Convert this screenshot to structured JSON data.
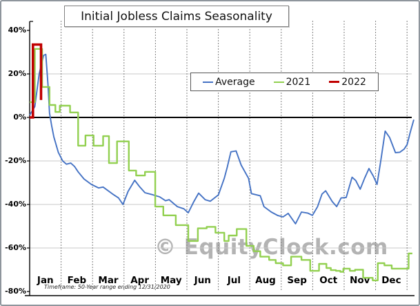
{
  "chart_data": {
    "type": "line",
    "title": "Initial Jobless Claims Seasonality",
    "watermark": "© EquityClock.com",
    "footnote": "Timeframe: 50-Year range ending 12/31/2020",
    "x_axis": {
      "unit": "week-of-year",
      "range_weeks": [
        0,
        52
      ],
      "months": [
        "Jan",
        "Feb",
        "Mar",
        "Apr",
        "May",
        "Jun",
        "Jul",
        "Aug",
        "Sep",
        "Oct",
        "Nov",
        "Dec"
      ]
    },
    "y_axis": {
      "format": "percent",
      "range": [
        -80,
        40
      ],
      "ticks": [
        40,
        20,
        0,
        -20,
        -40,
        -60,
        -80
      ],
      "tick_labels": [
        "40%",
        "20%",
        "0%",
        "-20%",
        "-40%",
        "-60%",
        "-80%"
      ],
      "zero_line_bold": true
    },
    "grid": {
      "horizontal_at_pct": [
        20,
        -20,
        -40,
        -60
      ],
      "vertical": "dashed line at each month boundary"
    },
    "legend": {
      "position": "top-center",
      "items": [
        {
          "label": "Average",
          "color": "#4472C4"
        },
        {
          "label": "2021",
          "color": "#92D050"
        },
        {
          "label": "2022",
          "color": "#C00000"
        }
      ]
    },
    "series": [
      {
        "name": "Average",
        "style": "line",
        "color": "#4472C4",
        "width": 1.9,
        "points_week_pct": [
          [
            0,
            1
          ],
          [
            0.7,
            5
          ],
          [
            1.3,
            20
          ],
          [
            1.9,
            28.5
          ],
          [
            2.2,
            29
          ],
          [
            2.5,
            15
          ],
          [
            2.7,
            2
          ],
          [
            3,
            -4
          ],
          [
            3.3,
            -9
          ],
          [
            3.9,
            -16
          ],
          [
            4.5,
            -20
          ],
          [
            5,
            -21.5
          ],
          [
            5.6,
            -21
          ],
          [
            6.1,
            -22.5
          ],
          [
            6.6,
            -25
          ],
          [
            7.4,
            -28.3
          ],
          [
            8.4,
            -30.8
          ],
          [
            9.4,
            -32.4
          ],
          [
            10,
            -32
          ],
          [
            11.3,
            -35.2
          ],
          [
            12.1,
            -37
          ],
          [
            12.7,
            -40
          ],
          [
            13.4,
            -34
          ],
          [
            14.3,
            -28.9
          ],
          [
            15,
            -32
          ],
          [
            15.7,
            -34.6
          ],
          [
            16.8,
            -35.6
          ],
          [
            17.7,
            -36.5
          ],
          [
            18.5,
            -38.3
          ],
          [
            19,
            -37.8
          ],
          [
            20.1,
            -41
          ],
          [
            21,
            -42
          ],
          [
            21.6,
            -43.8
          ],
          [
            22.3,
            -39
          ],
          [
            23,
            -34.8
          ],
          [
            23.9,
            -37.8
          ],
          [
            24.6,
            -38.5
          ],
          [
            25.7,
            -35.6
          ],
          [
            26.5,
            -28
          ],
          [
            26.9,
            -22.9
          ],
          [
            27.4,
            -15.8
          ],
          [
            28.1,
            -15.4
          ],
          [
            28.8,
            -21.9
          ],
          [
            29.8,
            -28
          ],
          [
            30.2,
            -35
          ],
          [
            31.4,
            -36
          ],
          [
            31.9,
            -41
          ],
          [
            32.9,
            -43.5
          ],
          [
            33.8,
            -45.1
          ],
          [
            34.5,
            -45.7
          ],
          [
            35.2,
            -44.1
          ],
          [
            36.2,
            -48.9
          ],
          [
            37,
            -43.5
          ],
          [
            37.9,
            -44
          ],
          [
            38.5,
            -45
          ],
          [
            39.2,
            -41
          ],
          [
            39.8,
            -35.2
          ],
          [
            40.3,
            -33.7
          ],
          [
            41.2,
            -38.7
          ],
          [
            41.8,
            -41
          ],
          [
            42.4,
            -37
          ],
          [
            43.1,
            -36.8
          ],
          [
            43.9,
            -27.5
          ],
          [
            44.4,
            -29
          ],
          [
            45,
            -33
          ],
          [
            45.6,
            -28
          ],
          [
            46.2,
            -23.5
          ],
          [
            46.8,
            -27
          ],
          [
            47.3,
            -30.8
          ],
          [
            47.8,
            -20
          ],
          [
            48.4,
            -6.3
          ],
          [
            49,
            -9.2
          ],
          [
            49.8,
            -16.2
          ],
          [
            50.4,
            -16
          ],
          [
            51,
            -14.5
          ],
          [
            51.4,
            -12.4
          ],
          [
            51.8,
            -7
          ],
          [
            52.3,
            -1
          ]
        ]
      },
      {
        "name": "2021",
        "style": "step",
        "color": "#92D050",
        "width": 2.4,
        "end_week": 52.1,
        "points_week_pct": [
          [
            0,
            7
          ],
          [
            0.7,
            31.5
          ],
          [
            1.7,
            14
          ],
          [
            2.7,
            5.7
          ],
          [
            3.5,
            2.5
          ],
          [
            4.1,
            5.4
          ],
          [
            5.5,
            2.3
          ],
          [
            6.6,
            -13
          ],
          [
            7.6,
            -8.3
          ],
          [
            8.7,
            -13
          ],
          [
            10,
            -8.6
          ],
          [
            10.8,
            -21
          ],
          [
            11.9,
            -11
          ],
          [
            13.5,
            -24.4
          ],
          [
            14.5,
            -26.7
          ],
          [
            15.7,
            -25
          ],
          [
            17.1,
            -41
          ],
          [
            18.2,
            -45
          ],
          [
            19.9,
            -49.5
          ],
          [
            21.6,
            -56.8
          ],
          [
            22.9,
            -51
          ],
          [
            24.1,
            -50.3
          ],
          [
            25.3,
            -53
          ],
          [
            26.5,
            -56.8
          ],
          [
            27.1,
            -54.3
          ],
          [
            28.2,
            -51.3
          ],
          [
            29.5,
            -59
          ],
          [
            30.5,
            -61.5
          ],
          [
            31.4,
            -64
          ],
          [
            32.6,
            -65.5
          ],
          [
            33.5,
            -67
          ],
          [
            34.5,
            -68
          ],
          [
            35.6,
            -64
          ],
          [
            37,
            -65.5
          ],
          [
            38.2,
            -70.5
          ],
          [
            39.4,
            -67.3
          ],
          [
            40.4,
            -69.2
          ],
          [
            41,
            -70.2
          ],
          [
            41.7,
            -70.5
          ],
          [
            42.3,
            -71
          ],
          [
            42.7,
            -69.5
          ],
          [
            43.6,
            -70.5
          ],
          [
            44.3,
            -70
          ],
          [
            45.4,
            -73.7
          ],
          [
            46.7,
            -74.9
          ],
          [
            47.4,
            -67
          ],
          [
            48.3,
            -68
          ],
          [
            49.3,
            -69.5
          ],
          [
            51.6,
            -62.5
          ]
        ]
      },
      {
        "name": "2022",
        "style": "line",
        "color": "#C00000",
        "width": 3.6,
        "points_week_pct": [
          [
            0,
            0
          ],
          [
            0.45,
            0
          ],
          [
            0.45,
            33.5
          ],
          [
            1.55,
            33.5
          ],
          [
            1.55,
            8
          ]
        ]
      }
    ]
  },
  "colors": {
    "background": "#FFFFFF",
    "frame_border": "#8E959C",
    "axis": "#000000",
    "gridline": "#C9C9C9",
    "month_gridline": "#808080",
    "watermark": "#ABABAB",
    "average_blue": "#4472C4",
    "green_2021": "#92D050",
    "red_2022": "#C00000"
  }
}
